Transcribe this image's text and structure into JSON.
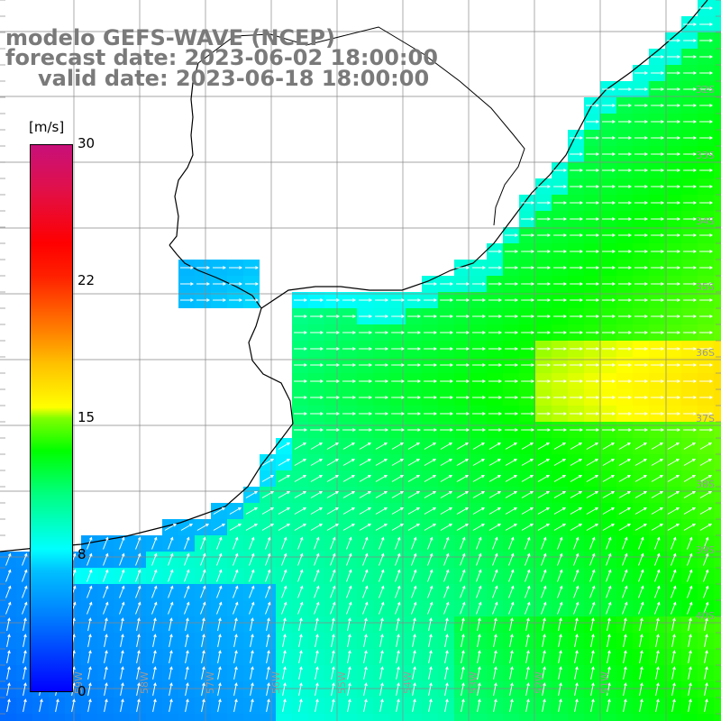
{
  "header": {
    "line1": "modelo GEFS-WAVE (NCEP)",
    "line2": "forecast date: 2023-06-02 18:00:00",
    "line3": "valid date: 2023-06-18 18:00:00"
  },
  "colorbar": {
    "unit": "[m/s]",
    "ticks": [
      "30",
      "22",
      "15",
      "8",
      "0"
    ]
  },
  "lat_labels": [
    "32S",
    "33S",
    "34S",
    "35S",
    "36S",
    "37S",
    "38S",
    "39S",
    "40S"
  ],
  "lon_labels": [
    "59W",
    "58W",
    "57W",
    "56W",
    "55W",
    "54W",
    "53W",
    "52W",
    "51W"
  ],
  "colors": {
    "land": "#ffffff",
    "grid": "#888888",
    "coast": "#000000",
    "arrow": "#ffffff"
  }
}
